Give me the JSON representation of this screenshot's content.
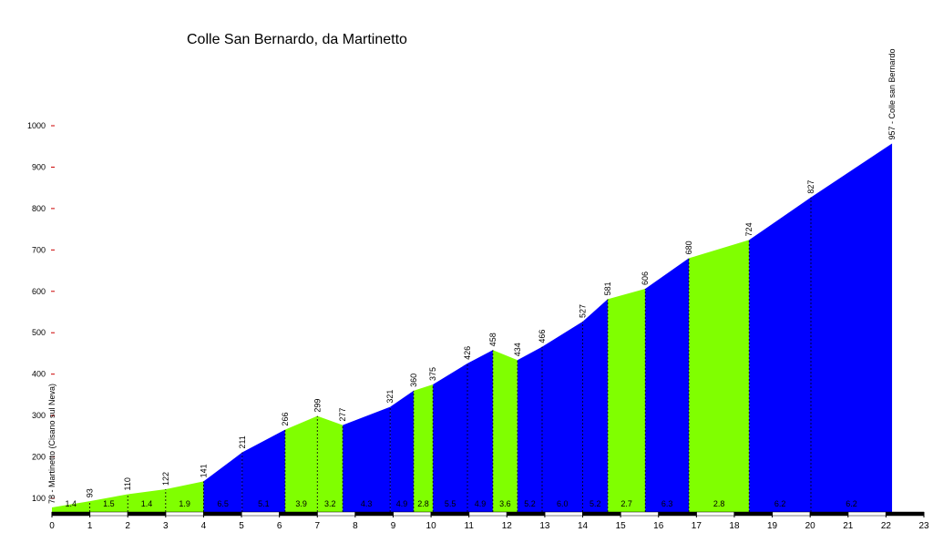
{
  "chart_data": {
    "type": "elevation-profile",
    "title": "Colle San Bernardo, da Martinetto",
    "x": [
      0,
      1,
      2,
      3,
      4,
      5.02,
      6.15,
      7.0,
      7.67,
      8.92,
      9.54,
      10.05,
      10.96,
      11.63,
      12.28,
      12.93,
      14.0,
      14.66,
      15.65,
      16.8,
      18.39,
      20.02,
      22.16
    ],
    "values": [
      78,
      93,
      110,
      122,
      141,
      211,
      266,
      299,
      277,
      321,
      360,
      375,
      426,
      458,
      434,
      466,
      527,
      581,
      606,
      680,
      724,
      827,
      957
    ],
    "value_labels": [
      "78 - Martinetto (Cisano sul Neva)",
      "93",
      "110",
      "122",
      "141",
      "211",
      "266",
      "299",
      "277",
      "321",
      "360",
      "375",
      "426",
      "458",
      "434",
      "466",
      "527",
      "581",
      "606",
      "680",
      "724",
      "827",
      "957 - Colle san Bernardo"
    ],
    "gradients": [
      1.4,
      1.5,
      1.4,
      1.9,
      6.5,
      5.1,
      3.9,
      3.2,
      4.3,
      4.9,
      2.8,
      5.5,
      4.9,
      3.6,
      5.2,
      {
        "value": 6,
        "label": "6.0"
      },
      5.2,
      2.7,
      6.3,
      2.8,
      6.2,
      6.2
    ],
    "segment_colors": [
      "#80ff00",
      "#80ff00",
      "#80ff00",
      "#80ff00",
      "#0000ff",
      "#0000ff",
      "#80ff00",
      "#80ff00",
      "#0000ff",
      "#0000ff",
      "#80ff00",
      "#0000ff",
      "#0000ff",
      "#80ff00",
      "#0000ff",
      "#0000ff",
      "#0000ff",
      "#80ff00",
      "#0000ff",
      "#80ff00",
      "#0000ff",
      "#0000ff"
    ],
    "xlim": [
      0,
      23
    ],
    "xticks": [
      0,
      1,
      2,
      3,
      4,
      5,
      6,
      7,
      8,
      9,
      10,
      11,
      12,
      13,
      14,
      15,
      16,
      17,
      18,
      19,
      20,
      21,
      22,
      23
    ],
    "ylim": [
      67,
      1000
    ],
    "yticks": [
      100,
      200,
      300,
      400,
      500,
      600,
      700,
      800,
      900,
      1000
    ]
  }
}
